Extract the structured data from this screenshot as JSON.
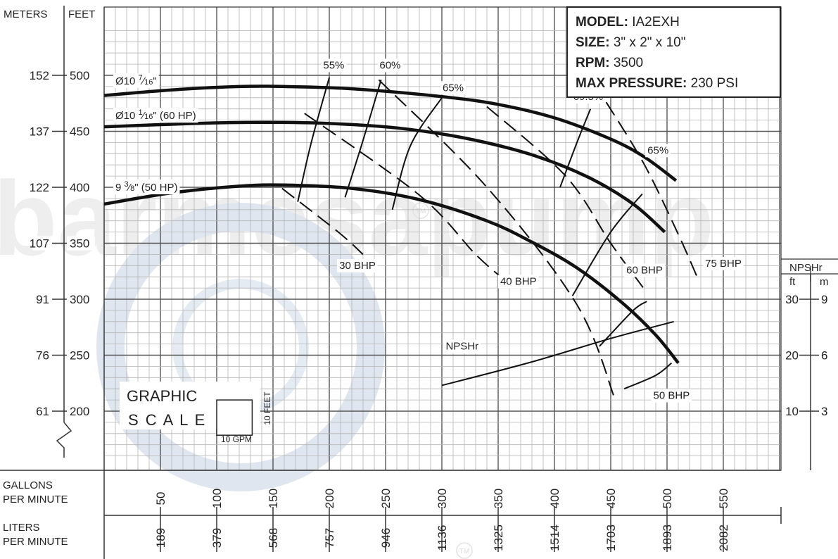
{
  "chart_data": {
    "type": "line",
    "title": "",
    "axes": {
      "left_outer_label": "METERS",
      "left_inner_label": "FEET",
      "ft_ticks": [
        {
          "ft": 500,
          "m": "152"
        },
        {
          "ft": 450,
          "m": "137"
        },
        {
          "ft": 400,
          "m": "122"
        },
        {
          "ft": 350,
          "m": "107"
        },
        {
          "ft": 300,
          "m": "91"
        },
        {
          "ft": 250,
          "m": "76"
        },
        {
          "ft": 200,
          "m": "61"
        }
      ],
      "ylim_ft": [
        162,
        545
      ],
      "xlim_gpm": [
        0,
        600
      ],
      "x_primary_label_1": "GALLONS",
      "x_primary_label_2": "PER MINUTE",
      "x_secondary_label_1": "LITERS",
      "x_secondary_label_2": "PER MINUTE",
      "x_ticks": [
        {
          "gpm": 50,
          "gpm_label": "50",
          "lpm": "189"
        },
        {
          "gpm": 100,
          "gpm_label": "100",
          "lpm": "379"
        },
        {
          "gpm": 150,
          "gpm_label": "150",
          "lpm": "568"
        },
        {
          "gpm": 200,
          "gpm_label": "200",
          "lpm": "757"
        },
        {
          "gpm": 250,
          "gpm_label": "250",
          "lpm": "946"
        },
        {
          "gpm": 300,
          "gpm_label": "300",
          "lpm": "1136"
        },
        {
          "gpm": 350,
          "gpm_label": "350",
          "lpm": "1325"
        },
        {
          "gpm": 400,
          "gpm_label": "400",
          "lpm": "1514"
        },
        {
          "gpm": 450,
          "gpm_label": "450",
          "lpm": "1703"
        },
        {
          "gpm": 500,
          "gpm_label": "500",
          "lpm": "1893"
        },
        {
          "gpm": 550,
          "gpm_label": "550",
          "lpm": "2082"
        }
      ],
      "npsh_title": "NPSHr",
      "npsh_ft_label": "ft",
      "npsh_m_label": "m",
      "npsh_ticks": [
        {
          "ft_label": "30",
          "m_label": "9",
          "head_ft": 300
        },
        {
          "ft_label": "20",
          "m_label": "6",
          "head_ft": 250
        },
        {
          "ft_label": "10",
          "m_label": "3",
          "head_ft": 200
        }
      ]
    },
    "grid": true,
    "head_curves": [
      {
        "main": "Ø10 ",
        "frac_num": "7",
        "frac_den": "16",
        "suffix": "\"",
        "points": [
          [
            0,
            482
          ],
          [
            60,
            487
          ],
          [
            120,
            490
          ],
          [
            160,
            490
          ],
          [
            220,
            488
          ],
          [
            300,
            481
          ],
          [
            350,
            474
          ],
          [
            400,
            462
          ],
          [
            450,
            443
          ],
          [
            480,
            427
          ],
          [
            508,
            406
          ]
        ]
      },
      {
        "main": "Ø10 ",
        "frac_num": "1",
        "frac_den": "16",
        "suffix": "\" (60 HP)",
        "points": [
          [
            0,
            454
          ],
          [
            80,
            457
          ],
          [
            140,
            458
          ],
          [
            200,
            457
          ],
          [
            260,
            453
          ],
          [
            320,
            444
          ],
          [
            380,
            429
          ],
          [
            430,
            409
          ],
          [
            470,
            385
          ],
          [
            498,
            360
          ]
        ]
      },
      {
        "main": "9 ",
        "frac_num": "3",
        "frac_den": "8",
        "suffix": "\" (50 HP)",
        "points": [
          [
            0,
            385
          ],
          [
            60,
            395
          ],
          [
            120,
            401
          ],
          [
            160,
            402
          ],
          [
            220,
            399
          ],
          [
            280,
            389
          ],
          [
            340,
            370
          ],
          [
            380,
            351
          ],
          [
            420,
            328
          ],
          [
            460,
            297
          ],
          [
            490,
            268
          ],
          [
            510,
            243
          ]
        ]
      }
    ],
    "efficiency_curves": [
      {
        "label": "55%",
        "points": [
          [
            172,
            387
          ],
          [
            184,
            440
          ],
          [
            200,
            498
          ]
        ]
      },
      {
        "label": "60%",
        "points": [
          [
            214,
            391
          ],
          [
            230,
            442
          ],
          [
            246,
            496
          ]
        ]
      },
      {
        "label": "65%",
        "points": [
          [
            256,
            380
          ],
          [
            272,
            437
          ],
          [
            300,
            480
          ]
        ]
      },
      {
        "label": "69.5%",
        "points": [
          [
            405,
            400
          ],
          [
            420,
            440
          ],
          [
            432,
            470
          ]
        ]
      },
      {
        "label": "65%",
        "points": [
          [
            416,
            303
          ],
          [
            450,
            360
          ],
          [
            478,
            394
          ]
        ]
      },
      {
        "label": "",
        "points": [
          [
            440,
            258
          ],
          [
            470,
            290
          ],
          [
            482,
            298
          ]
        ]
      },
      {
        "label": "",
        "points": [
          [
            462,
            220
          ],
          [
            490,
            232
          ],
          [
            504,
            243
          ]
        ]
      }
    ],
    "bhp_curves": [
      {
        "label": "30 BHP",
        "points": [
          [
            158,
            399
          ],
          [
            208,
            360
          ],
          [
            230,
            340
          ]
        ]
      },
      {
        "label": "40 BHP",
        "points": [
          [
            178,
            466
          ],
          [
            280,
            393
          ],
          [
            330,
            340
          ],
          [
            356,
            317
          ]
        ]
      },
      {
        "label": "50 BHP",
        "points": [
          [
            244,
            496
          ],
          [
            340,
            400
          ],
          [
            420,
            295
          ],
          [
            454,
            210
          ]
        ]
      },
      {
        "label": "60 BHP",
        "points": [
          [
            340,
            472
          ],
          [
            410,
            410
          ],
          [
            450,
            350
          ],
          [
            482,
            306
          ]
        ]
      },
      {
        "label": "75 BHP",
        "points": [
          [
            446,
            476
          ],
          [
            480,
            420
          ],
          [
            510,
            358
          ],
          [
            528,
            317
          ]
        ]
      }
    ],
    "npshr_curve": {
      "label": "NPSHr",
      "points": [
        [
          300,
          223
        ],
        [
          380,
          244
        ],
        [
          450,
          265
        ],
        [
          506,
          280
        ]
      ]
    },
    "info_box": [
      {
        "key": "MODEL:",
        "value": " IA2EXH"
      },
      {
        "key": "SIZE:",
        "value": " 3\" x 2\" x 10\""
      },
      {
        "key": "RPM:",
        "value": " 3500"
      },
      {
        "key": "MAX PRESSURE:",
        "value": " 230 PSI"
      }
    ],
    "graphic_scale": {
      "line1": "GRAPHIC",
      "line2": "S C A L E",
      "x_label": "10 GPM",
      "y_label": "10 FEET"
    },
    "watermark": {
      "text": "barmesapump",
      "tm": "TM"
    }
  }
}
